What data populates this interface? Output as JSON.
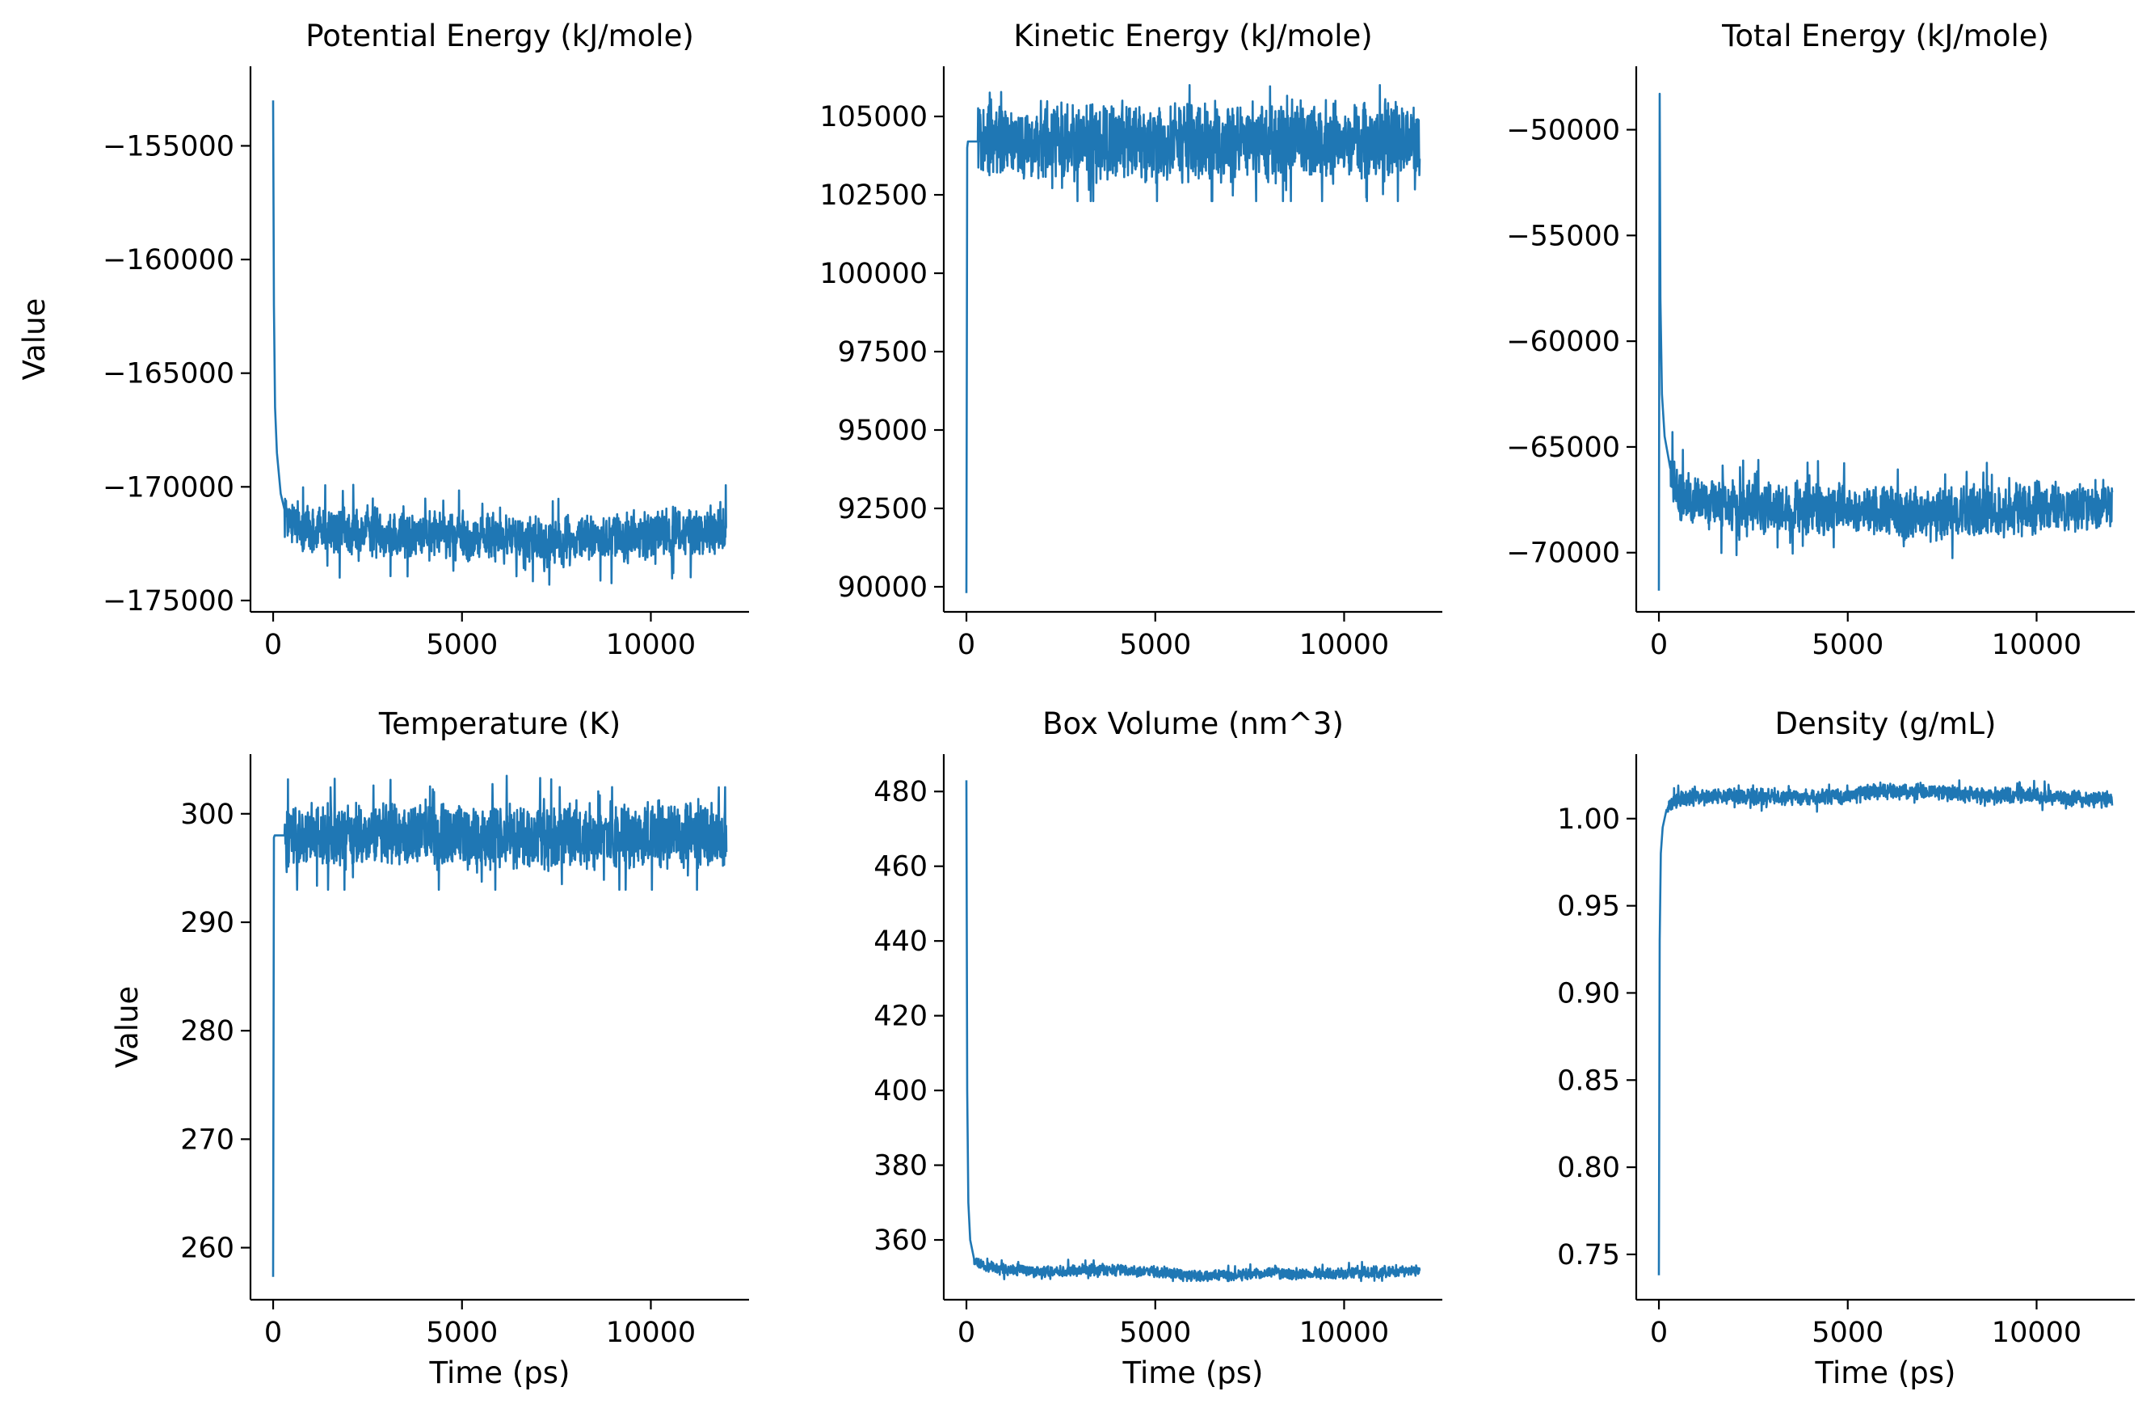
{
  "figure": {
    "colors": {
      "series": "#1f77b4",
      "axis": "#000000",
      "background": "#ffffff"
    }
  },
  "chart_data": [
    {
      "type": "line",
      "title": "Potential Energy (kJ/mole)",
      "xlabel": "",
      "ylabel": "Value",
      "xlim": [
        -600,
        12600
      ],
      "ylim": [
        -175500,
        -151500
      ],
      "xticks": [
        0,
        5000,
        10000
      ],
      "xtick_labels": [
        "0",
        "5000",
        "10000"
      ],
      "yticks": [
        -175000,
        -170000,
        -165000,
        -160000,
        -155000
      ],
      "ytick_labels": [
        "−175000",
        "−170000",
        "−165000",
        "−160000",
        "−155000"
      ],
      "grid": false,
      "x": [
        0,
        20,
        50,
        100,
        200,
        300,
        500,
        1000,
        2000,
        3000,
        4000,
        5000,
        6000,
        7000,
        8000,
        9000,
        10000,
        11000,
        12000
      ],
      "y": [
        -153000,
        -162000,
        -166500,
        -168500,
        -170300,
        -171000,
        -171600,
        -171900,
        -172000,
        -172000,
        -172100,
        -172200,
        -172300,
        -172400,
        -172300,
        -172200,
        -172100,
        -172000,
        -172000
      ],
      "noise": {
        "band": 1400,
        "max": -169600,
        "min": -174300
      }
    },
    {
      "type": "line",
      "title": "Kinetic Energy (kJ/mole)",
      "xlabel": "",
      "ylabel": "",
      "xlim": [
        -600,
        12600
      ],
      "ylim": [
        89200,
        106600
      ],
      "xticks": [
        0,
        5000,
        10000
      ],
      "xtick_labels": [
        "0",
        "5000",
        "10000"
      ],
      "yticks": [
        90000,
        92500,
        95000,
        97500,
        100000,
        102500,
        105000
      ],
      "ytick_labels": [
        "90000",
        "92500",
        "95000",
        "97500",
        "100000",
        "102500",
        "105000"
      ],
      "grid": false,
      "x": [
        0,
        20,
        40,
        100,
        300,
        1000,
        2000,
        3000,
        4000,
        5000,
        6000,
        7000,
        8000,
        9000,
        10000,
        11000,
        12000
      ],
      "y": [
        89800,
        104000,
        104200,
        104200,
        104200,
        104200,
        104200,
        104200,
        104200,
        104200,
        104200,
        104200,
        104200,
        104200,
        104200,
        104200,
        104200
      ],
      "noise": {
        "band": 1600,
        "max": 106000,
        "min": 102300
      }
    },
    {
      "type": "line",
      "title": "Total Energy (kJ/mole)",
      "xlabel": "",
      "ylabel": "",
      "xlim": [
        -600,
        12600
      ],
      "ylim": [
        -72800,
        -47000
      ],
      "xticks": [
        0,
        5000,
        10000
      ],
      "xtick_labels": [
        "0",
        "5000",
        "10000"
      ],
      "yticks": [
        -70000,
        -65000,
        -60000,
        -55000,
        -50000
      ],
      "ytick_labels": [
        "−70000",
        "−65000",
        "−60000",
        "−55000",
        "−50000"
      ],
      "grid": false,
      "x": [
        0,
        20,
        40,
        80,
        150,
        300,
        500,
        1000,
        2000,
        3000,
        4000,
        5000,
        6000,
        7000,
        8000,
        9000,
        10000,
        11000,
        12000
      ],
      "y": [
        -71800,
        -48300,
        -58000,
        -62500,
        -64500,
        -66000,
        -67200,
        -67600,
        -67800,
        -67900,
        -68000,
        -68000,
        -68000,
        -68200,
        -68100,
        -68000,
        -67900,
        -67800,
        -67800
      ],
      "noise": {
        "band": 1600,
        "max": -64300,
        "min": -70700
      }
    },
    {
      "type": "line",
      "title": "Temperature (K)",
      "xlabel": "Time (ps)",
      "ylabel": "Value",
      "xlim": [
        -600,
        12600
      ],
      "ylim": [
        255200,
        305500
      ],
      "ylim_scale": 1000,
      "xticks": [
        0,
        5000,
        10000
      ],
      "xtick_labels": [
        "0",
        "5000",
        "10000"
      ],
      "yticks": [
        260,
        270,
        280,
        290,
        300
      ],
      "ytick_labels": [
        "260",
        "270",
        "280",
        "290",
        "300"
      ],
      "grid": false,
      "x": [
        0,
        20,
        40,
        100,
        300,
        1000,
        2000,
        3000,
        4000,
        5000,
        6000,
        7000,
        8000,
        9000,
        10000,
        11000,
        12000
      ],
      "y": [
        257.3,
        297.8,
        298.0,
        298.0,
        298.0,
        298.0,
        298.0,
        298.0,
        298.0,
        298.0,
        298.0,
        298.0,
        298.0,
        298.0,
        298.0,
        298.0,
        298.0
      ],
      "noise": {
        "band": 4.0,
        "max": 303.5,
        "min": 293.0
      }
    },
    {
      "type": "line",
      "title": "Box Volume (nm^3)",
      "xlabel": "Time (ps)",
      "ylabel": "",
      "xlim": [
        -600,
        12600
      ],
      "ylim": [
        344,
        490
      ],
      "xticks": [
        0,
        5000,
        10000
      ],
      "xtick_labels": [
        "0",
        "5000",
        "10000"
      ],
      "yticks": [
        360,
        380,
        400,
        420,
        440,
        460,
        480
      ],
      "ytick_labels": [
        "360",
        "380",
        "400",
        "420",
        "440",
        "460",
        "480"
      ],
      "grid": false,
      "x": [
        0,
        20,
        50,
        100,
        200,
        400,
        1000,
        2000,
        3000,
        4000,
        5000,
        6000,
        7000,
        8000,
        9000,
        10000,
        11000,
        12000
      ],
      "y": [
        483,
        400,
        370,
        360,
        355,
        353,
        352,
        351.5,
        352,
        352,
        351.5,
        350.5,
        350.5,
        351,
        351,
        351,
        351.5,
        352
      ],
      "noise": {
        "band": 2.0,
        "max": 355,
        "min": 349
      }
    },
    {
      "type": "line",
      "title": "Density (g/mL)",
      "xlabel": "Time (ps)",
      "ylabel": "",
      "xlim": [
        -600,
        12600
      ],
      "ylim": [
        0.724,
        1.037
      ],
      "xticks": [
        0,
        5000,
        10000
      ],
      "xtick_labels": [
        "0",
        "5000",
        "10000"
      ],
      "yticks": [
        0.75,
        0.8,
        0.85,
        0.9,
        0.95,
        1.0
      ],
      "ytick_labels": [
        "0.75",
        "0.80",
        "0.85",
        "0.90",
        "0.95",
        "1.00"
      ],
      "grid": false,
      "x": [
        0,
        20,
        50,
        100,
        200,
        400,
        1000,
        2000,
        3000,
        4000,
        5000,
        6000,
        7000,
        8000,
        9000,
        10000,
        11000,
        12000
      ],
      "y": [
        0.738,
        0.93,
        0.98,
        0.995,
        1.005,
        1.01,
        1.012,
        1.013,
        1.012,
        1.012,
        1.013,
        1.016,
        1.016,
        1.014,
        1.013,
        1.013,
        1.012,
        1.011
      ],
      "noise": {
        "band": 0.006,
        "max": 1.022,
        "min": 1.004
      }
    }
  ]
}
